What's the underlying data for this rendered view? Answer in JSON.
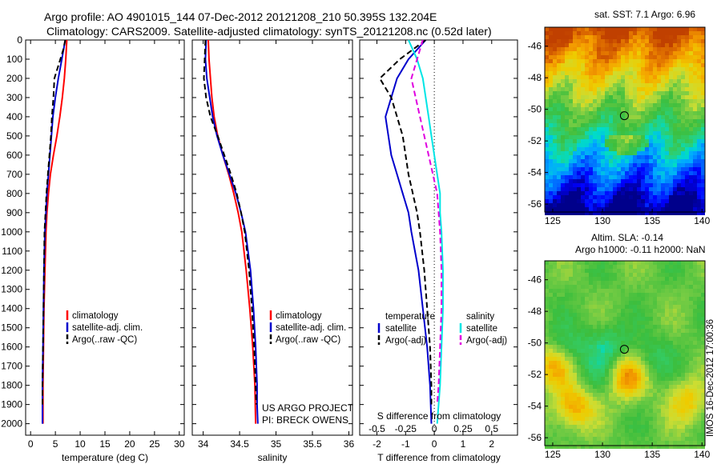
{
  "title_line1": "Argo profile: AO 4901015_144 07-Dec-2012 20121208_210 50.395S 132.204E",
  "title_line2": "Climatology: CARS2009. Satellite-adjusted climatology: synTS_20121208.nc (0.52d later)",
  "sst_title": "sat. SST: 7.1 Argo: 6.96",
  "sla_title1": "Altim. SLA: -0.14",
  "sla_title2": "Argo h1000: -0.11 h2000: NaN",
  "project_line1": "US ARGO PROJECT",
  "project_line2": "PI: BRECK OWENS",
  "credit": "IMOS 16-Dec-2012 17:00:36",
  "colors": {
    "climatology": "#ff0000",
    "satellite": "#0000cc",
    "argo": "#000000",
    "sat_salinity": "#00e5e5",
    "argo_salinity": "#e000e0"
  },
  "chart_data": [
    {
      "type": "line",
      "xlabel": "temperature (deg C)",
      "xlim": [
        -1,
        31
      ],
      "ylim": [
        2060,
        0
      ],
      "xticks": [
        "0",
        "5",
        "10",
        "15",
        "20",
        "25",
        "30"
      ],
      "yticks": [
        "0",
        "100",
        "200",
        "300",
        "400",
        "500",
        "600",
        "700",
        "800",
        "900",
        "1000",
        "1100",
        "1200",
        "1300",
        "1400",
        "1500",
        "1600",
        "1700",
        "1800",
        "1900",
        "2000"
      ],
      "legend": [
        "climatology",
        "satellite-adj. clim.",
        "Argo(..raw -QC)"
      ],
      "series": [
        {
          "name": "climatology",
          "color": "#ff0000",
          "points": [
            [
              7.3,
              0
            ],
            [
              7.1,
              100
            ],
            [
              6.8,
              200
            ],
            [
              6.4,
              300
            ],
            [
              5.9,
              400
            ],
            [
              5.3,
              500
            ],
            [
              4.6,
              600
            ],
            [
              4.0,
              700
            ],
            [
              3.6,
              800
            ],
            [
              3.3,
              900
            ],
            [
              3.1,
              1000
            ],
            [
              2.9,
              1200
            ],
            [
              2.7,
              1400
            ],
            [
              2.6,
              1600
            ],
            [
              2.5,
              1800
            ],
            [
              2.5,
              2000
            ]
          ]
        },
        {
          "name": "satellite-adj. clim.",
          "color": "#0000cc",
          "points": [
            [
              7.0,
              0
            ],
            [
              6.3,
              100
            ],
            [
              5.6,
              200
            ],
            [
              5.0,
              300
            ],
            [
              4.5,
              400
            ],
            [
              4.2,
              500
            ],
            [
              3.9,
              600
            ],
            [
              3.6,
              700
            ],
            [
              3.3,
              800
            ],
            [
              3.1,
              900
            ],
            [
              2.9,
              1000
            ],
            [
              2.7,
              1200
            ],
            [
              2.6,
              1400
            ],
            [
              2.5,
              1600
            ],
            [
              2.4,
              1800
            ],
            [
              2.4,
              2000
            ]
          ]
        },
        {
          "name": "Argo(..raw -QC)",
          "color": "#000000",
          "dashed": true,
          "points": [
            [
              7.0,
              0
            ],
            [
              6.6,
              50
            ],
            [
              6.0,
              100
            ],
            [
              5.4,
              150
            ],
            [
              4.8,
              200
            ],
            [
              4.6,
              300
            ],
            [
              4.3,
              400
            ],
            [
              4.1,
              500
            ],
            [
              3.8,
              600
            ],
            [
              3.5,
              700
            ],
            [
              3.2,
              800
            ],
            [
              3.0,
              900
            ],
            [
              2.8,
              1000
            ],
            [
              2.7,
              1200
            ],
            [
              2.6,
              1400
            ],
            [
              2.5,
              1600
            ],
            [
              2.4,
              1800
            ],
            [
              2.4,
              1900
            ]
          ]
        }
      ]
    },
    {
      "type": "line",
      "xlabel": "salinity",
      "xlim": [
        33.85,
        36.05
      ],
      "ylim": [
        2060,
        0
      ],
      "xticks": [
        "34",
        "34.5",
        "35",
        "35.5",
        "36"
      ],
      "legend": [
        "climatology",
        "satellite-adj. clim.",
        "Argo(..raw -QC)"
      ],
      "series": [
        {
          "name": "climatology",
          "color": "#ff0000",
          "points": [
            [
              34.07,
              0
            ],
            [
              34.08,
              100
            ],
            [
              34.1,
              200
            ],
            [
              34.12,
              300
            ],
            [
              34.15,
              400
            ],
            [
              34.2,
              500
            ],
            [
              34.27,
              600
            ],
            [
              34.35,
              700
            ],
            [
              34.42,
              800
            ],
            [
              34.48,
              900
            ],
            [
              34.53,
              1000
            ],
            [
              34.59,
              1200
            ],
            [
              34.64,
              1400
            ],
            [
              34.68,
              1600
            ],
            [
              34.71,
              1800
            ],
            [
              34.72,
              2000
            ]
          ]
        },
        {
          "name": "satellite-adj. clim.",
          "color": "#0000cc",
          "points": [
            [
              34.04,
              0
            ],
            [
              34.03,
              100
            ],
            [
              34.05,
              200
            ],
            [
              34.09,
              300
            ],
            [
              34.13,
              400
            ],
            [
              34.19,
              500
            ],
            [
              34.27,
              600
            ],
            [
              34.36,
              700
            ],
            [
              34.45,
              800
            ],
            [
              34.52,
              900
            ],
            [
              34.58,
              1000
            ],
            [
              34.65,
              1200
            ],
            [
              34.69,
              1400
            ],
            [
              34.72,
              1600
            ],
            [
              34.74,
              1800
            ],
            [
              34.74,
              1900
            ],
            [
              34.75,
              2000
            ]
          ]
        },
        {
          "name": "Argo(..raw -QC)",
          "color": "#000000",
          "dashed": true,
          "points": [
            [
              34.03,
              0
            ],
            [
              34.02,
              100
            ],
            [
              34.01,
              200
            ],
            [
              34.04,
              300
            ],
            [
              34.1,
              400
            ],
            [
              34.2,
              500
            ],
            [
              34.29,
              600
            ],
            [
              34.38,
              700
            ],
            [
              34.46,
              800
            ],
            [
              34.52,
              900
            ],
            [
              34.57,
              1000
            ],
            [
              34.63,
              1200
            ],
            [
              34.67,
              1400
            ],
            [
              34.7,
              1600
            ],
            [
              34.72,
              1800
            ],
            [
              34.73,
              1900
            ]
          ]
        }
      ]
    },
    {
      "type": "line",
      "xlabel": "T difference from climatology",
      "x2label": "S difference from climatology",
      "xlim": [
        -2.6,
        2.9
      ],
      "ylim": [
        2060,
        0
      ],
      "xticks": [
        "-2",
        "-1",
        "0",
        "1",
        "2"
      ],
      "x2ticks": [
        {
          "label": "-0.5",
          "t": -2.0
        },
        {
          "label": "-0.25",
          "t": -1.0
        },
        {
          "label": "0",
          "t": 0.0
        },
        {
          "label": "0.25",
          "t": 1.0
        },
        {
          "label": "0.5",
          "t": 2.0
        }
      ],
      "legend_left_title": "temperature",
      "legend_right_title": "salinity",
      "legend_left": [
        "satellite",
        "Argo(-adj)"
      ],
      "legend_right": [
        "satellite",
        "Argo(-adj)"
      ],
      "series": [
        {
          "name": "T satellite",
          "color": "#0000cc",
          "points": [
            [
              -0.3,
              0
            ],
            [
              -0.9,
              100
            ],
            [
              -1.3,
              200
            ],
            [
              -1.5,
              300
            ],
            [
              -1.7,
              400
            ],
            [
              -1.6,
              500
            ],
            [
              -1.5,
              600
            ],
            [
              -1.3,
              700
            ],
            [
              -1.1,
              800
            ],
            [
              -0.9,
              900
            ],
            [
              -0.8,
              1000
            ],
            [
              -0.55,
              1200
            ],
            [
              -0.4,
              1400
            ],
            [
              -0.25,
              1600
            ],
            [
              -0.15,
              1800
            ],
            [
              -0.1,
              2000
            ]
          ]
        },
        {
          "name": "T Argo(-adj)",
          "color": "#000000",
          "dashed": true,
          "points": [
            [
              -0.3,
              0
            ],
            [
              -1.2,
              100
            ],
            [
              -1.9,
              200
            ],
            [
              -1.5,
              300
            ],
            [
              -1.3,
              400
            ],
            [
              -1.1,
              500
            ],
            [
              -1.0,
              600
            ],
            [
              -0.9,
              700
            ],
            [
              -0.75,
              800
            ],
            [
              -0.6,
              900
            ],
            [
              -0.5,
              1000
            ],
            [
              -0.35,
              1200
            ],
            [
              -0.25,
              1400
            ],
            [
              -0.15,
              1600
            ],
            [
              -0.1,
              1800
            ],
            [
              -0.1,
              1900
            ]
          ]
        },
        {
          "name": "S satellite",
          "color": "#00e5e5",
          "points": [
            [
              -0.9,
              0
            ],
            [
              -0.6,
              100
            ],
            [
              -0.4,
              200
            ],
            [
              -0.3,
              300
            ],
            [
              -0.2,
              400
            ],
            [
              -0.1,
              500
            ],
            [
              0.0,
              600
            ],
            [
              0.1,
              700
            ],
            [
              0.2,
              800
            ],
            [
              0.2,
              900
            ],
            [
              0.25,
              1000
            ],
            [
              0.3,
              1200
            ],
            [
              0.3,
              1400
            ],
            [
              0.25,
              1600
            ],
            [
              0.2,
              1800
            ],
            [
              0.1,
              2000
            ]
          ]
        },
        {
          "name": "S Argo(-adj)",
          "color": "#e000e0",
          "dashed": true,
          "points": [
            [
              -0.4,
              0
            ],
            [
              -0.8,
              200
            ],
            [
              -0.5,
              400
            ],
            [
              -0.2,
              600
            ],
            [
              0.1,
              800
            ],
            [
              0.2,
              1000
            ],
            [
              0.25,
              1200
            ],
            [
              0.25,
              1400
            ],
            [
              0.2,
              1600
            ],
            [
              0.15,
              1800
            ],
            [
              0.1,
              1900
            ]
          ]
        }
      ]
    },
    {
      "type": "heatmap",
      "title": "sat. SST: 7.1 Argo: 6.96",
      "xlim": [
        124.2,
        140.3
      ],
      "ylim": [
        -56.5,
        -44.8
      ],
      "xticks": [
        "125",
        "130",
        "135",
        "140"
      ],
      "yticks": [
        "-46",
        "-48",
        "-50",
        "-52",
        "-54",
        "-56"
      ],
      "marker": {
        "lon": 132.2,
        "lat": -50.4
      },
      "colorscale": [
        "#00008b",
        "#0000ff",
        "#0064ff",
        "#00aaff",
        "#00dcc8",
        "#33cc66",
        "#3dbe3d",
        "#77cc44",
        "#ccdd33",
        "#eecc00",
        "#f5a000",
        "#e07000",
        "#c04000"
      ]
    },
    {
      "type": "heatmap",
      "title": "Altim. SLA: -0.14",
      "xlim": [
        124.2,
        140.3
      ],
      "ylim": [
        -56.5,
        -44.8
      ],
      "xticks": [
        "125",
        "130",
        "135",
        "140"
      ],
      "yticks": [
        "-46",
        "-48",
        "-50",
        "-52",
        "-54",
        "-56"
      ],
      "marker": {
        "lon": 132.2,
        "lat": -50.4
      }
    }
  ]
}
